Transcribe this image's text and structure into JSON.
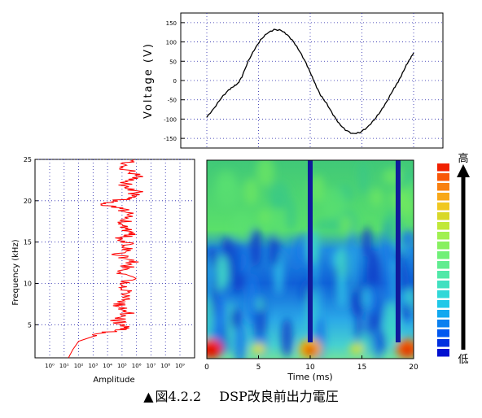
{
  "chart_data": [
    {
      "type": "line",
      "ylabel": "Voltage (V)",
      "xlabel": "",
      "xlim": [
        0,
        20
      ],
      "ylim": [
        -175,
        175
      ],
      "xticks_shown": false,
      "yticks": [
        150,
        100,
        50,
        0,
        -50,
        -100,
        -150
      ],
      "grid": true,
      "series": [
        {
          "color": "#000000",
          "points": [
            [
              0,
              -95
            ],
            [
              0.7,
              -72
            ],
            [
              1.4,
              -45
            ],
            [
              2.1,
              -25
            ],
            [
              2.6,
              -15
            ],
            [
              3.0,
              -8
            ],
            [
              3.4,
              10
            ],
            [
              4.0,
              50
            ],
            [
              4.6,
              80
            ],
            [
              5.2,
              105
            ],
            [
              5.8,
              122
            ],
            [
              6.5,
              132
            ],
            [
              7.2,
              130
            ],
            [
              7.8,
              118
            ],
            [
              8.4,
              100
            ],
            [
              9.0,
              75
            ],
            [
              9.6,
              45
            ],
            [
              10.1,
              15
            ],
            [
              10.5,
              -10
            ],
            [
              11.0,
              -38
            ],
            [
              11.6,
              -60
            ],
            [
              12.2,
              -88
            ],
            [
              12.8,
              -112
            ],
            [
              13.4,
              -128
            ],
            [
              14.1,
              -138
            ],
            [
              14.8,
              -135
            ],
            [
              15.5,
              -122
            ],
            [
              16.2,
              -102
            ],
            [
              16.8,
              -80
            ],
            [
              17.4,
              -55
            ],
            [
              18.0,
              -25
            ],
            [
              18.4,
              -8
            ],
            [
              18.8,
              12
            ],
            [
              19.3,
              40
            ],
            [
              19.7,
              58
            ],
            [
              20.0,
              72
            ]
          ]
        }
      ]
    },
    {
      "type": "line",
      "xlabel": "Amplitude",
      "ylabel": "Frequency (kHz)",
      "xscale": "log",
      "xlim": [
        "10^0",
        "10^9"
      ],
      "xtick_labels": [
        "10⁰",
        "10¹",
        "10²",
        "10³",
        "10⁴",
        "10⁵",
        "10⁶",
        "10⁷",
        "10⁸",
        "10⁹"
      ],
      "ylim": [
        1,
        25
      ],
      "yticks": [
        25,
        20,
        15,
        10,
        5
      ],
      "grid": true,
      "series": [
        {
          "color": "#ff0000",
          "points": [
            [
              1.3,
              1
            ],
            [
              1.6,
              2
            ],
            [
              2.0,
              3
            ],
            [
              3.7,
              4
            ],
            [
              5.5,
              4.6
            ],
            [
              4.6,
              5.5
            ],
            [
              5.4,
              6.5
            ],
            [
              4.7,
              7.5
            ],
            [
              5.6,
              8.5
            ],
            [
              4.9,
              9.5
            ],
            [
              5.5,
              10.5
            ],
            [
              5.0,
              11.5
            ],
            [
              5.7,
              12.5
            ],
            [
              4.8,
              13.5
            ],
            [
              5.6,
              14.5
            ],
            [
              5.0,
              15.5
            ],
            [
              6.0,
              16
            ],
            [
              4.8,
              17
            ],
            [
              5.7,
              18
            ],
            [
              5.0,
              19
            ],
            [
              3.2,
              19.6
            ],
            [
              5.5,
              20.3
            ],
            [
              6.0,
              21
            ],
            [
              5.2,
              22
            ],
            [
              6.1,
              23
            ],
            [
              5.1,
              24
            ],
            [
              5.8,
              25
            ]
          ]
        }
      ]
    },
    {
      "type": "heatmap",
      "xlabel": "Time (ms)",
      "ylabel": "",
      "xlim": [
        0,
        20
      ],
      "xtick_labels": [
        "0",
        "5",
        "10",
        "15",
        "20"
      ],
      "colormap": "jet",
      "dark_vertical_bands_ms": [
        10,
        18.5
      ],
      "colorbar_labels": {
        "top": "高",
        "bottom": "低"
      }
    }
  ],
  "caption": {
    "symbol": "▲",
    "figure_no": "図4.2.2",
    "title": "DSP改良前出力電圧"
  }
}
